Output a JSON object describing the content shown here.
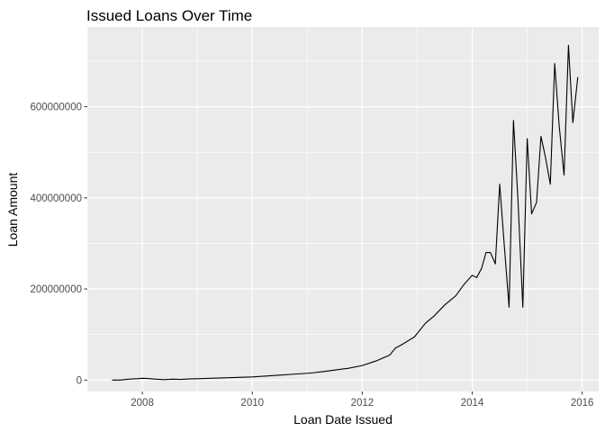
{
  "chart_data": {
    "type": "line",
    "title": "Issued Loans Over Time",
    "xlabel": "Loan Date Issued",
    "ylabel": "Loan Amount",
    "xlim": [
      2007.0,
      2016.3
    ],
    "ylim": [
      -25000000,
      775000000
    ],
    "x_ticks": [
      {
        "value": 2008,
        "label": "2008"
      },
      {
        "value": 2010,
        "label": "2010"
      },
      {
        "value": 2012,
        "label": "2012"
      },
      {
        "value": 2014,
        "label": "2014"
      },
      {
        "value": 2016,
        "label": "2016"
      }
    ],
    "y_ticks": [
      {
        "value": 0,
        "label": "0"
      },
      {
        "value": 200000000,
        "label": "200000000"
      },
      {
        "value": 400000000,
        "label": "400000000"
      },
      {
        "value": 600000000,
        "label": "600000000"
      }
    ],
    "grid": true,
    "line_color": "#000000",
    "panel_background": "#ebebeb",
    "series": [
      {
        "x": [
          2007.45,
          2007.6,
          2007.75,
          2007.9,
          2008.0,
          2008.1,
          2008.25,
          2008.4,
          2008.55,
          2008.7,
          2008.85,
          2009.0,
          2009.25,
          2009.5,
          2009.75,
          2010.0,
          2010.25,
          2010.5,
          2010.75,
          2011.0,
          2011.1,
          2011.25,
          2011.5,
          2011.75,
          2012.0,
          2012.25,
          2012.5,
          2012.6,
          2012.75,
          2012.95,
          2013.15,
          2013.3,
          2013.5,
          2013.7,
          2013.85,
          2014.0,
          2014.08,
          2014.17,
          2014.25,
          2014.33,
          2014.42,
          2014.5,
          2014.58,
          2014.67,
          2014.75,
          2014.83,
          2014.92,
          2015.0,
          2015.08,
          2015.17,
          2015.25,
          2015.33,
          2015.42,
          2015.5,
          2015.58,
          2015.67,
          2015.75,
          2015.83,
          2015.92
        ],
        "y": [
          0,
          0,
          2000000,
          3000000,
          4000000,
          3500000,
          2000000,
          1000000,
          2000000,
          1500000,
          2500000,
          3000000,
          4000000,
          5000000,
          6000000,
          7000000,
          9000000,
          11000000,
          13000000,
          15000000,
          16000000,
          18000000,
          22000000,
          26000000,
          32000000,
          42000000,
          55000000,
          70000000,
          80000000,
          95000000,
          125000000,
          140000000,
          165000000,
          185000000,
          210000000,
          230000000,
          225000000,
          245000000,
          280000000,
          280000000,
          255000000,
          430000000,
          300000000,
          160000000,
          570000000,
          400000000,
          160000000,
          530000000,
          365000000,
          390000000,
          535000000,
          490000000,
          430000000,
          695000000,
          560000000,
          450000000,
          735000000,
          565000000,
          665000000
        ]
      }
    ]
  }
}
